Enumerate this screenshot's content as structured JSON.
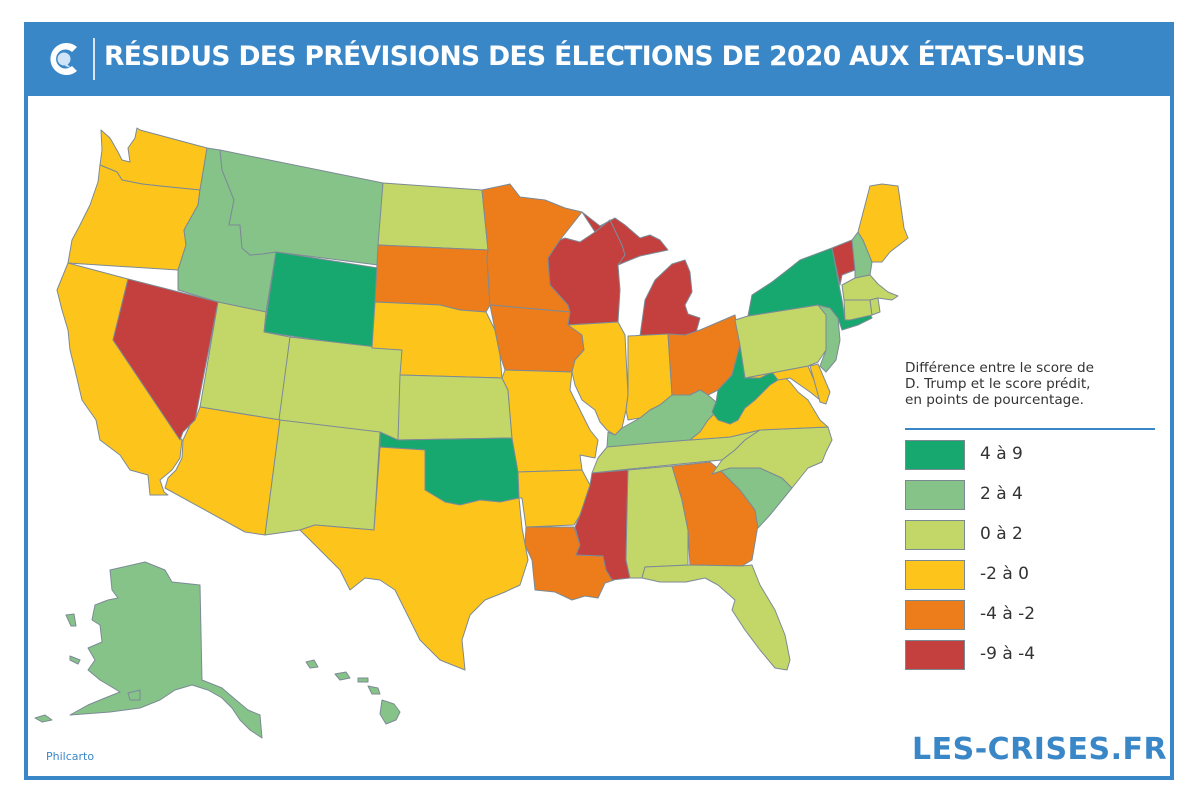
{
  "header": {
    "title": "RÉSIDUS DES PRÉVISIONS DES ÉLECTIONS DE 2020 AUX ÉTATS-UNIS",
    "logo_icon": "les-crises-c-logo-icon"
  },
  "legend": {
    "title": "Différence entre le score de D. Trump et le score prédit, en points de pourcentage.",
    "title_lines": [
      "Différence entre le score de",
      "D. Trump et le score prédit,",
      "en points de pourcentage."
    ],
    "classes": [
      {
        "id": "c1",
        "label": "4 à 9",
        "range": [
          4,
          9
        ],
        "color": "#17a86f"
      },
      {
        "id": "c2",
        "label": "2 à 4",
        "range": [
          2,
          4
        ],
        "color": "#86c388"
      },
      {
        "id": "c3",
        "label": "0 à 2",
        "range": [
          0,
          2
        ],
        "color": "#c3d768"
      },
      {
        "id": "c4",
        "label": "-2 à 0",
        "range": [
          -2,
          0
        ],
        "color": "#fdc51c"
      },
      {
        "id": "c5",
        "label": "-4 à -2",
        "range": [
          -4,
          -2
        ],
        "color": "#ed7c1b"
      },
      {
        "id": "c6",
        "label": "-9 à -4",
        "range": [
          -9,
          -4
        ],
        "color": "#c4403e"
      }
    ]
  },
  "states": {
    "WA": "c4",
    "OR": "c4",
    "CA": "c4",
    "NV": "c6",
    "ID": "c2",
    "MT": "c2",
    "WY": "c1",
    "UT": "c3",
    "CO": "c3",
    "AZ": "c4",
    "NM": "c3",
    "ND": "c3",
    "SD": "c5",
    "NE": "c4",
    "KS": "c3",
    "OK": "c1",
    "TX": "c4",
    "MN": "c5",
    "IA": "c5",
    "MO": "c4",
    "AR": "c4",
    "LA": "c5",
    "WI": "c6",
    "IL": "c4",
    "MI": "c6",
    "IN": "c4",
    "OH": "c5",
    "KY": "c2",
    "TN": "c3",
    "MS": "c6",
    "AL": "c3",
    "GA": "c5",
    "FL": "c3",
    "SC": "c2",
    "NC": "c3",
    "VA": "c4",
    "WV": "c1",
    "PA": "c3",
    "NY": "c1",
    "NJ": "c2",
    "DE": "c4",
    "MD": "c4",
    "VT": "c6",
    "NH": "c2",
    "ME": "c4",
    "MA": "c3",
    "CT": "c3",
    "RI": "c3",
    "AK": "c2",
    "HI": "c2"
  },
  "footer": {
    "credit": "Philcarto",
    "brand": "LES-CRISES.FR"
  }
}
